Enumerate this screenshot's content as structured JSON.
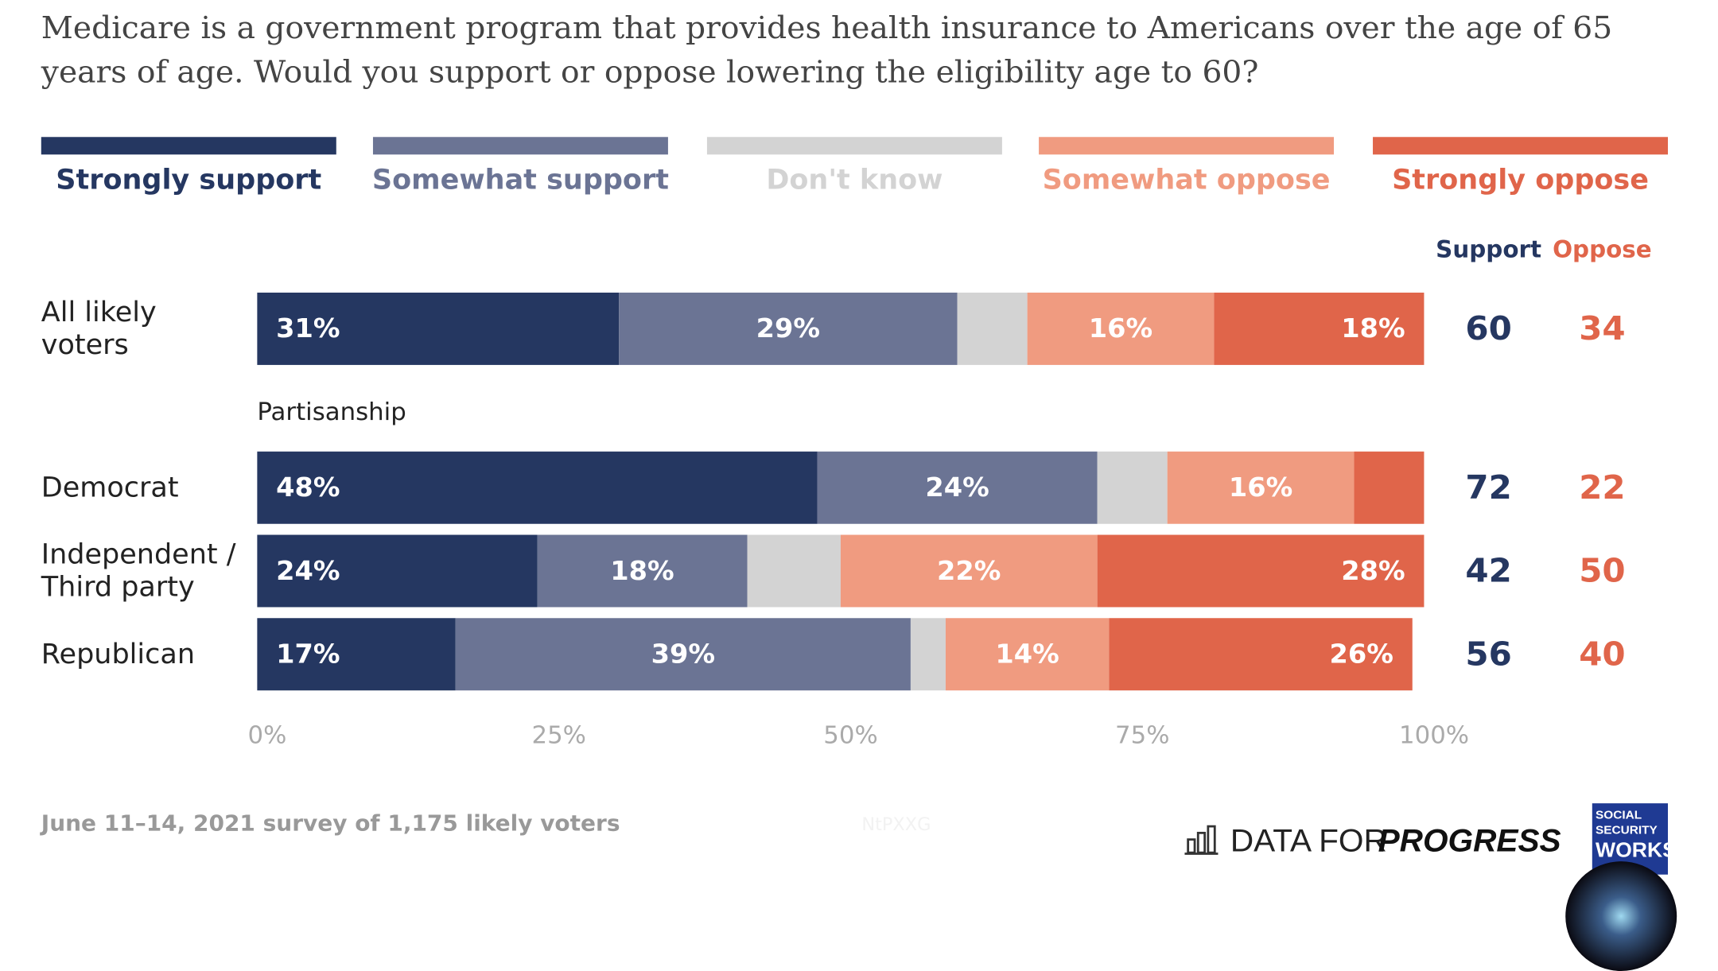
{
  "chart_data": {
    "type": "stacked-bar-horizontal",
    "title": "Medicare is a government program that provides health insurance to Americans over the age of 65 years of age. Would you support or oppose lowering the eligibility age to 60?",
    "categories": [
      "All likely\nvoters",
      "Democrat",
      "Independent /\nThird party",
      "Republican"
    ],
    "group_label": "Partisanship",
    "series": [
      {
        "name": "Strongly support",
        "color": "#253761",
        "values": [
          31,
          48,
          24,
          17
        ],
        "value_labels": [
          "31%",
          "48%",
          "24%",
          "17%"
        ]
      },
      {
        "name": "Somewhat support",
        "color": "#6b7494",
        "values": [
          29,
          24,
          18,
          39
        ],
        "value_labels": [
          "29%",
          "24%",
          "18%",
          "39%"
        ]
      },
      {
        "name": "Don't know",
        "color": "#d3d3d3",
        "values": [
          6,
          6,
          8,
          3
        ],
        "value_labels": [
          null,
          null,
          null,
          null
        ]
      },
      {
        "name": "Somewhat oppose",
        "color": "#f09b80",
        "values": [
          16,
          16,
          22,
          14
        ],
        "value_labels": [
          "16%",
          "16%",
          "22%",
          "14%"
        ]
      },
      {
        "name": "Strongly oppose",
        "color": "#e0654a",
        "values": [
          18,
          6,
          28,
          26
        ],
        "value_labels": [
          "18%",
          null,
          "28%",
          "26%"
        ]
      }
    ],
    "totals": [
      {
        "name": "Support",
        "color": "#253761",
        "values": [
          60,
          72,
          42,
          56
        ]
      },
      {
        "name": "Oppose",
        "color": "#e0654a",
        "values": [
          34,
          22,
          50,
          40
        ]
      }
    ],
    "xlim": [
      0,
      100
    ],
    "xticks": [
      {
        "value": 0,
        "label": "0%"
      },
      {
        "value": 25,
        "label": "25%"
      },
      {
        "value": 50,
        "label": "50%"
      },
      {
        "value": 75,
        "label": "75%"
      },
      {
        "value": 100,
        "label": "100%"
      }
    ],
    "source": "June 11–14, 2021 survey of 1,175 likely voters",
    "watermark": "NtPXXG",
    "brand": "DATA FOR",
    "brand_emphasis": "PROGRESS",
    "partner_logo": [
      "SOCIAL",
      "SECURITY",
      "WORKS."
    ]
  }
}
